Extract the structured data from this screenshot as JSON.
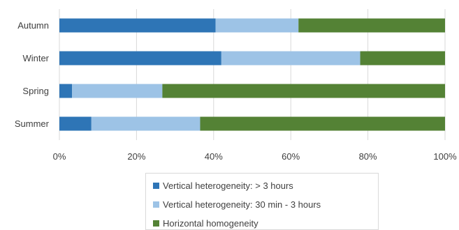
{
  "chart_data": {
    "type": "bar",
    "orientation": "horizontal",
    "stacked": "percent",
    "categories": [
      "Autumn",
      "Winter",
      "Spring",
      "Summer"
    ],
    "series": [
      {
        "name": "Vertical heterogeneity:  > 3 hours",
        "color": "#2e75b6",
        "values": [
          40.5,
          42.0,
          3.3,
          8.3
        ]
      },
      {
        "name": "Vertical heterogeneity:  30 min - 3 hours",
        "color": "#9dc3e6",
        "values": [
          21.5,
          36.0,
          23.4,
          28.2
        ]
      },
      {
        "name": "Horizontal homogeneity",
        "color": "#548235",
        "values": [
          38.0,
          22.0,
          73.3,
          63.5
        ]
      }
    ],
    "xlim": [
      0,
      100
    ],
    "x_ticks": [
      "0%",
      "20%",
      "40%",
      "60%",
      "80%",
      "100%"
    ],
    "grid": true,
    "legend_position": "bottom"
  }
}
